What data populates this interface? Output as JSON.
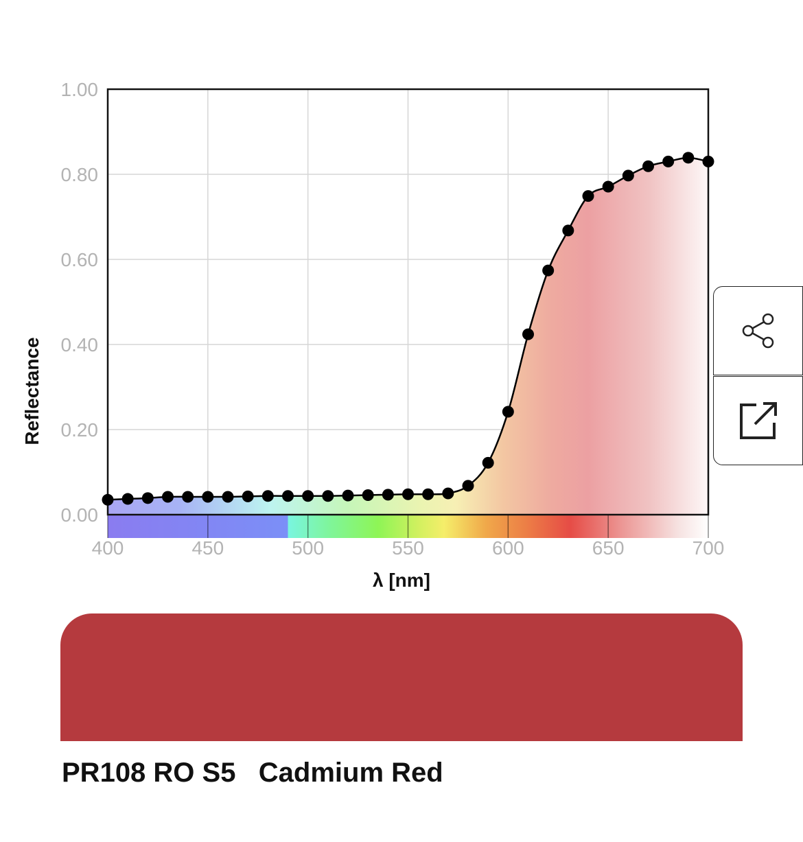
{
  "chart_data": {
    "type": "line",
    "xlabel": "λ [nm]",
    "ylabel": "Reflectance",
    "xlim": [
      400,
      700
    ],
    "ylim": [
      0,
      1
    ],
    "x_ticks": [
      "400",
      "450",
      "500",
      "550",
      "600",
      "650",
      "700"
    ],
    "y_ticks": [
      "0.00",
      "0.20",
      "0.40",
      "0.60",
      "0.80",
      "1.00"
    ],
    "grid": true,
    "x": [
      400,
      410,
      420,
      430,
      440,
      450,
      460,
      470,
      480,
      490,
      500,
      510,
      520,
      530,
      540,
      550,
      560,
      570,
      580,
      590,
      600,
      610,
      620,
      630,
      640,
      650,
      660,
      670,
      680,
      690,
      700
    ],
    "y": [
      0.035,
      0.037,
      0.039,
      0.042,
      0.042,
      0.042,
      0.042,
      0.043,
      0.044,
      0.044,
      0.044,
      0.044,
      0.045,
      0.046,
      0.047,
      0.048,
      0.048,
      0.05,
      0.068,
      0.122,
      0.242,
      0.424,
      0.574,
      0.668,
      0.749,
      0.771,
      0.797,
      0.819,
      0.83,
      0.839,
      0.83
    ]
  },
  "swatch": {
    "color": "#b53a3e"
  },
  "pigment": {
    "label": "PR108 RO S5   Cadmium Red"
  },
  "actions": {
    "share_icon": "share-icon",
    "open_icon": "external-link-icon"
  }
}
